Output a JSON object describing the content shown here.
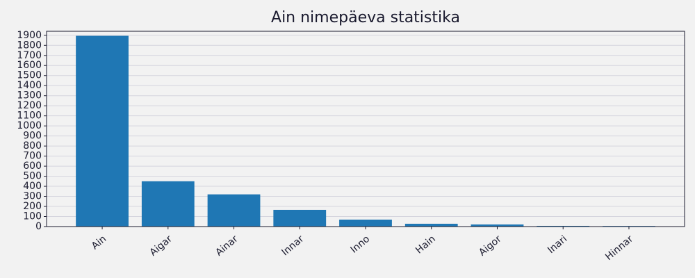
{
  "chart_data": {
    "type": "bar",
    "title": "Ain nimepäeva statistika",
    "categories": [
      "Ain",
      "Aigar",
      "Ainar",
      "Innar",
      "Inno",
      "Hain",
      "Aigor",
      "Inari",
      "Hinnar"
    ],
    "values": [
      1895,
      450,
      320,
      166,
      69,
      28,
      21,
      7,
      6
    ],
    "color": "#1f77b4",
    "ylim": [
      0,
      1940
    ],
    "yticks": [
      0,
      100,
      200,
      300,
      400,
      500,
      600,
      700,
      800,
      900,
      1000,
      1100,
      1200,
      1300,
      1400,
      1500,
      1600,
      1700,
      1800,
      1900
    ],
    "grid": true
  }
}
